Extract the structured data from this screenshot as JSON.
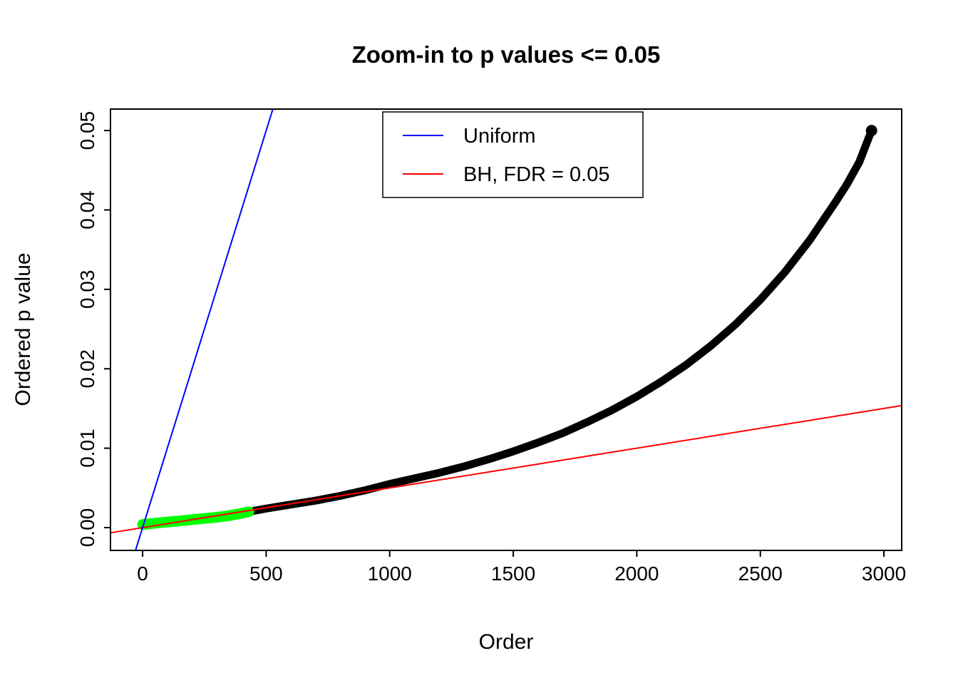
{
  "figure": {
    "title": "Zoom-in to p values <= 0.05",
    "xlabel": "Order",
    "ylabel": "Ordered p value"
  },
  "chart_data": {
    "type": "scatter",
    "title": "Zoom-in to p values <= 0.05",
    "xlabel": "Order",
    "ylabel": "Ordered p value",
    "xlim": [
      -130,
      3072
    ],
    "ylim": [
      -0.00287,
      0.0527
    ],
    "grid": false,
    "legend_position": "top-center-inside",
    "x_ticks": [
      {
        "v": 0,
        "label": "0"
      },
      {
        "v": 500,
        "label": "500"
      },
      {
        "v": 1000,
        "label": "1000"
      },
      {
        "v": 1500,
        "label": "1500"
      },
      {
        "v": 2000,
        "label": "2000"
      },
      {
        "v": 2500,
        "label": "2500"
      },
      {
        "v": 3000,
        "label": "3000"
      }
    ],
    "y_ticks": [
      {
        "v": 0.0,
        "label": "0.00"
      },
      {
        "v": 0.01,
        "label": "0.01"
      },
      {
        "v": 0.02,
        "label": "0.02"
      },
      {
        "v": 0.03,
        "label": "0.03"
      },
      {
        "v": 0.04,
        "label": "0.04"
      },
      {
        "v": 0.05,
        "label": "0.05"
      }
    ],
    "legend": {
      "entries": [
        {
          "label": "Uniform",
          "color": "#0000FF"
        },
        {
          "label": "BH, FDR = 0.05",
          "color": "#FF0000"
        }
      ]
    },
    "series": [
      {
        "name": "ordered-p-values",
        "color": "#000000",
        "width": 11,
        "end_dot": true,
        "points": [
          [
            0,
            0.0004
          ],
          [
            50,
            0.00055
          ],
          [
            100,
            0.0007
          ],
          [
            150,
            0.00085
          ],
          [
            200,
            0.001
          ],
          [
            250,
            0.00115
          ],
          [
            300,
            0.0013
          ],
          [
            350,
            0.0015
          ],
          [
            400,
            0.0018
          ],
          [
            430,
            0.002
          ],
          [
            500,
            0.0024
          ],
          [
            600,
            0.0029
          ],
          [
            700,
            0.0034
          ],
          [
            800,
            0.004
          ],
          [
            900,
            0.0047
          ],
          [
            1000,
            0.0055
          ],
          [
            1100,
            0.0062
          ],
          [
            1200,
            0.0069
          ],
          [
            1300,
            0.0077
          ],
          [
            1400,
            0.0086
          ],
          [
            1500,
            0.0096
          ],
          [
            1600,
            0.0107
          ],
          [
            1700,
            0.0119
          ],
          [
            1800,
            0.0133
          ],
          [
            1900,
            0.0148
          ],
          [
            2000,
            0.0165
          ],
          [
            2100,
            0.0184
          ],
          [
            2200,
            0.0205
          ],
          [
            2300,
            0.0229
          ],
          [
            2400,
            0.0256
          ],
          [
            2500,
            0.0287
          ],
          [
            2600,
            0.0322
          ],
          [
            2700,
            0.0362
          ],
          [
            2800,
            0.0408
          ],
          [
            2850,
            0.0432
          ],
          [
            2900,
            0.046
          ],
          [
            2950,
            0.05
          ]
        ]
      },
      {
        "name": "significant-p-values",
        "color": "#00FF00",
        "width": 15,
        "end_dot": false,
        "points": [
          [
            0,
            0.0004
          ],
          [
            50,
            0.00055
          ],
          [
            100,
            0.0007
          ],
          [
            150,
            0.00085
          ],
          [
            200,
            0.001
          ],
          [
            250,
            0.00115
          ],
          [
            300,
            0.0013
          ],
          [
            350,
            0.0015
          ],
          [
            400,
            0.0018
          ],
          [
            430,
            0.002
          ]
        ]
      },
      {
        "name": "bh-fdr-line",
        "color": "#FF0000",
        "width": 2,
        "end_dot": false,
        "points": [
          [
            -130,
            -0.00065
          ],
          [
            3072,
            0.01536
          ]
        ]
      },
      {
        "name": "uniform-line",
        "color": "#0000FF",
        "width": 2,
        "end_dot": false,
        "points": [
          [
            -29,
            -0.0029
          ],
          [
            527,
            0.0527
          ]
        ]
      }
    ]
  }
}
